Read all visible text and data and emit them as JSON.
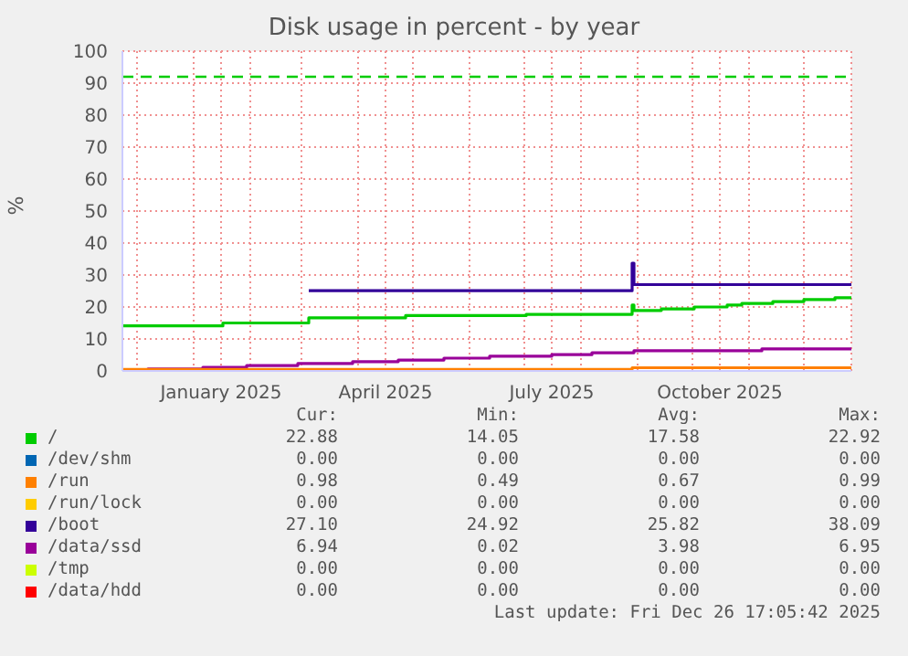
{
  "chart_data": {
    "type": "step",
    "title": "Disk usage in percent - by year",
    "ylabel": "%",
    "xlim": [
      "2024-11-23",
      "2025-12-27"
    ],
    "xticks": [
      {
        "value": "2024-12-01",
        "label": null
      },
      {
        "value": "2025-01-01",
        "label": null
      },
      {
        "value": "2025-01-16",
        "label": "January 2025"
      },
      {
        "value": "2025-02-01",
        "label": null
      },
      {
        "value": "2025-03-01",
        "label": null
      },
      {
        "value": "2025-04-01",
        "label": null
      },
      {
        "value": "2025-04-16",
        "label": "April 2025"
      },
      {
        "value": "2025-05-01",
        "label": null
      },
      {
        "value": "2025-06-01",
        "label": null
      },
      {
        "value": "2025-07-01",
        "label": null
      },
      {
        "value": "2025-07-16",
        "label": "July 2025"
      },
      {
        "value": "2025-08-01",
        "label": null
      },
      {
        "value": "2025-09-01",
        "label": null
      },
      {
        "value": "2025-10-01",
        "label": null
      },
      {
        "value": "2025-10-16",
        "label": "October 2025"
      },
      {
        "value": "2025-11-01",
        "label": null
      },
      {
        "value": "2025-12-01",
        "label": null
      }
    ],
    "ylim": [
      0,
      100
    ],
    "yticks": [
      0,
      10,
      20,
      30,
      40,
      50,
      60,
      70,
      80,
      90,
      100
    ],
    "grid": true,
    "legend": "bottom",
    "ref_lines": [
      {
        "axis": "y",
        "value": 92,
        "color": "#00cc00",
        "line_style": "dashed"
      }
    ],
    "series": [
      {
        "name": "/",
        "color": "#00cc00",
        "x": [
          "2024-11-23",
          "2025-01-17",
          "2025-03-05",
          "2025-04-27",
          "2025-07-02",
          "2025-08-29",
          "2025-08-30",
          "2025-09-14",
          "2025-10-02",
          "2025-10-20",
          "2025-10-28",
          "2025-11-14",
          "2025-12-01",
          "2025-12-18",
          "2025-12-27"
        ],
        "values": [
          14.1,
          15.0,
          16.6,
          17.3,
          17.7,
          20.6,
          18.9,
          19.4,
          20.0,
          20.6,
          21.1,
          21.7,
          22.3,
          22.9,
          22.9
        ]
      },
      {
        "name": "/dev/shm",
        "color": "#0066b3"
      },
      {
        "name": "/run",
        "color": "#ff8000",
        "x": [
          "2024-11-23",
          "2025-08-28",
          "2025-08-29",
          "2025-12-27"
        ],
        "values": [
          0.5,
          0.5,
          1.0,
          1.0
        ]
      },
      {
        "name": "/run/lock",
        "color": "#ffcc00"
      },
      {
        "name": "/boot",
        "color": "#330099",
        "x": [
          "2025-03-05",
          "2025-08-29",
          "2025-08-30",
          "2025-08-31",
          "2025-12-27"
        ],
        "values": [
          25.1,
          33.7,
          27.0,
          27.0,
          27.0
        ]
      },
      {
        "name": "/data/ssd",
        "color": "#990099",
        "x": [
          "2024-11-23",
          "2024-12-07",
          "2025-01-06",
          "2025-01-30",
          "2025-02-27",
          "2025-03-29",
          "2025-04-23",
          "2025-05-18",
          "2025-06-12",
          "2025-07-16",
          "2025-08-07",
          "2025-08-30",
          "2025-11-08",
          "2025-12-27"
        ],
        "values": [
          0.0,
          0.6,
          1.1,
          1.7,
          2.3,
          2.9,
          3.4,
          4.0,
          4.6,
          5.1,
          5.7,
          6.3,
          6.9,
          6.9
        ]
      },
      {
        "name": "/tmp",
        "color": "#ccff00"
      },
      {
        "name": "/data/hdd",
        "color": "#ff0000"
      }
    ],
    "annotations": [
      "Cur:",
      "Min:",
      "Avg:",
      "Max:",
      "22.88",
      "14.05",
      "17.58",
      "22.92",
      "0.00",
      "0.00",
      "0.00",
      "0.00",
      "0.98",
      "0.49",
      "0.67",
      "0.99",
      "0.00",
      "0.00",
      "0.00",
      "0.00",
      "27.10",
      "24.92",
      "25.82",
      "38.09",
      "6.94",
      "0.02",
      "3.98",
      "6.95",
      "0.00",
      "0.00",
      "0.00",
      "0.00",
      "0.00",
      "0.00",
      "0.00",
      "0.00",
      "Last update: Fri Dec 26 17:05:42 2025"
    ]
  }
}
